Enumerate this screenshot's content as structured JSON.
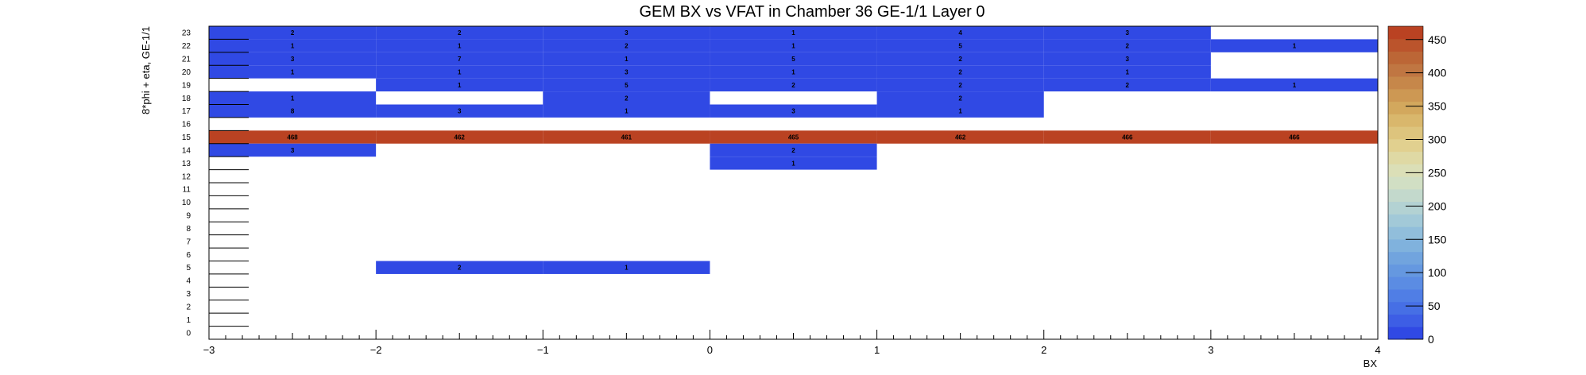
{
  "chart_data": {
    "type": "heatmap",
    "title": "GEM BX vs VFAT in Chamber 36 GE-1/1 Layer 0",
    "xlabel": "BX",
    "ylabel": "8*phi + eta, GE-1/1",
    "xlim": [
      -3,
      4
    ],
    "x_ticks": [
      "−3",
      "−2",
      "−1",
      "0",
      "1",
      "2",
      "3",
      "4"
    ],
    "ylim": [
      0,
      24
    ],
    "y_ticks": [
      "0",
      "1",
      "2",
      "3",
      "4",
      "5",
      "6",
      "7",
      "8",
      "9",
      "10",
      "11",
      "12",
      "13",
      "14",
      "15",
      "16",
      "17",
      "18",
      "19",
      "20",
      "21",
      "22",
      "23"
    ],
    "zlim": [
      0,
      470
    ],
    "z_ticks": [
      "0",
      "50",
      "100",
      "150",
      "200",
      "250",
      "300",
      "350",
      "400",
      "450"
    ],
    "grid": false,
    "colorbar": "right",
    "x_bins": [
      [
        -3,
        -2
      ],
      [
        -2,
        -1
      ],
      [
        -1,
        0
      ],
      [
        0,
        1
      ],
      [
        1,
        2
      ],
      [
        2,
        3
      ],
      [
        3,
        4
      ]
    ],
    "cells": [
      {
        "x": 0,
        "y": 23,
        "v": 2
      },
      {
        "x": 1,
        "y": 23,
        "v": 2
      },
      {
        "x": 2,
        "y": 23,
        "v": 3
      },
      {
        "x": 3,
        "y": 23,
        "v": 1
      },
      {
        "x": 4,
        "y": 23,
        "v": 4
      },
      {
        "x": 5,
        "y": 23,
        "v": 3
      },
      {
        "x": 0,
        "y": 22,
        "v": 1
      },
      {
        "x": 1,
        "y": 22,
        "v": 1
      },
      {
        "x": 2,
        "y": 22,
        "v": 2
      },
      {
        "x": 3,
        "y": 22,
        "v": 1
      },
      {
        "x": 4,
        "y": 22,
        "v": 5
      },
      {
        "x": 5,
        "y": 22,
        "v": 2
      },
      {
        "x": 6,
        "y": 22,
        "v": 1
      },
      {
        "x": 0,
        "y": 21,
        "v": 3
      },
      {
        "x": 1,
        "y": 21,
        "v": 7
      },
      {
        "x": 2,
        "y": 21,
        "v": 1
      },
      {
        "x": 3,
        "y": 21,
        "v": 5
      },
      {
        "x": 4,
        "y": 21,
        "v": 2
      },
      {
        "x": 5,
        "y": 21,
        "v": 3
      },
      {
        "x": 0,
        "y": 20,
        "v": 1
      },
      {
        "x": 1,
        "y": 20,
        "v": 1
      },
      {
        "x": 2,
        "y": 20,
        "v": 3
      },
      {
        "x": 3,
        "y": 20,
        "v": 1
      },
      {
        "x": 4,
        "y": 20,
        "v": 2
      },
      {
        "x": 5,
        "y": 20,
        "v": 1
      },
      {
        "x": 1,
        "y": 19,
        "v": 1
      },
      {
        "x": 2,
        "y": 19,
        "v": 5
      },
      {
        "x": 3,
        "y": 19,
        "v": 2
      },
      {
        "x": 4,
        "y": 19,
        "v": 2
      },
      {
        "x": 5,
        "y": 19,
        "v": 2
      },
      {
        "x": 6,
        "y": 19,
        "v": 1
      },
      {
        "x": 0,
        "y": 18,
        "v": 1
      },
      {
        "x": 2,
        "y": 18,
        "v": 2
      },
      {
        "x": 4,
        "y": 18,
        "v": 2
      },
      {
        "x": 0,
        "y": 17,
        "v": 8
      },
      {
        "x": 1,
        "y": 17,
        "v": 3
      },
      {
        "x": 2,
        "y": 17,
        "v": 1
      },
      {
        "x": 3,
        "y": 17,
        "v": 3
      },
      {
        "x": 4,
        "y": 17,
        "v": 1
      },
      {
        "x": 0,
        "y": 15,
        "v": 468
      },
      {
        "x": 1,
        "y": 15,
        "v": 462
      },
      {
        "x": 2,
        "y": 15,
        "v": 461
      },
      {
        "x": 3,
        "y": 15,
        "v": 465
      },
      {
        "x": 4,
        "y": 15,
        "v": 462
      },
      {
        "x": 5,
        "y": 15,
        "v": 466
      },
      {
        "x": 6,
        "y": 15,
        "v": 466
      },
      {
        "x": 0,
        "y": 14,
        "v": 3
      },
      {
        "x": 3,
        "y": 14,
        "v": 2
      },
      {
        "x": 3,
        "y": 13,
        "v": 1
      },
      {
        "x": 1,
        "y": 5,
        "v": 2
      },
      {
        "x": 2,
        "y": 5,
        "v": 1
      }
    ],
    "colors": {
      "low": "#2f48e4",
      "high": "#bb3f22",
      "palette": [
        "#3049e4",
        "#3d5ee5",
        "#466fe5",
        "#507ee5",
        "#5b8ce3",
        "#6598e0",
        "#71a4de",
        "#80b2dd",
        "#91bedb",
        "#a2c9d8",
        "#b3d2d3",
        "#c3d9cc",
        "#d1dfc4",
        "#dbdfb7",
        "#dfd9a4",
        "#e1d08f",
        "#ddc47d",
        "#d9b76c",
        "#d3a85d",
        "#cd9853",
        "#c6874a",
        "#c07642",
        "#bc6636",
        "#bb542c",
        "#ba4222"
      ]
    }
  }
}
